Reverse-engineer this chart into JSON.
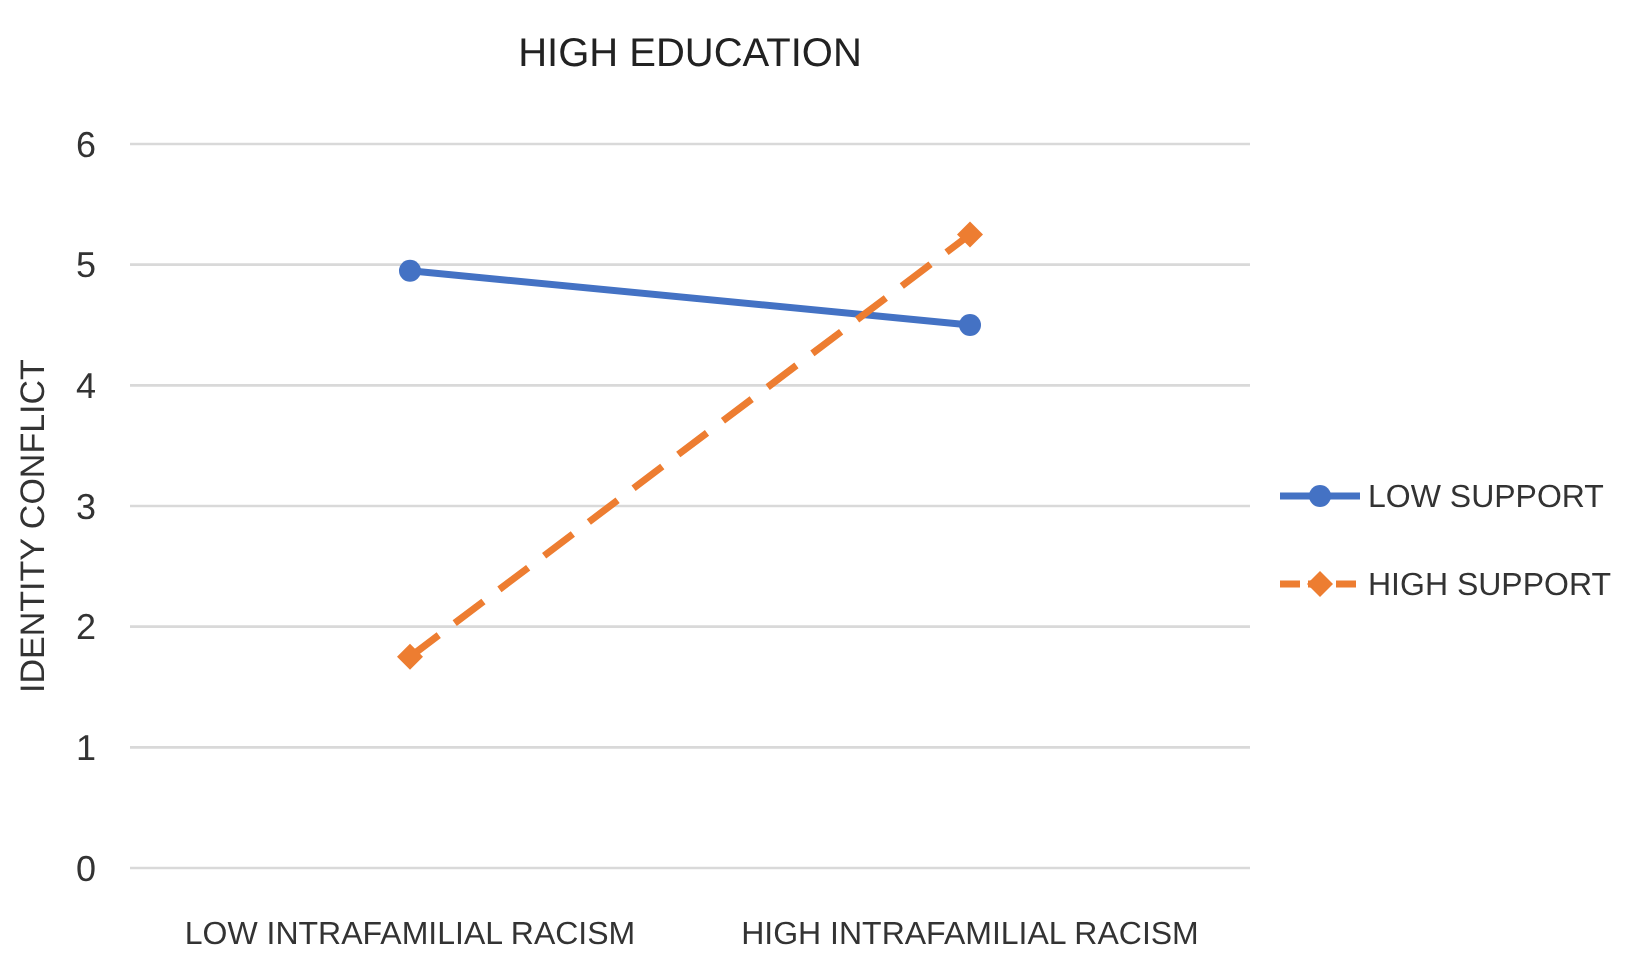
{
  "chart_data": {
    "type": "line",
    "title": "HIGH EDUCATION",
    "ylabel": "IDENTITY CONFLICT",
    "categories": [
      "LOW INTRAFAMILIAL RACISM",
      "HIGH INTRAFAMILIAL RACISM"
    ],
    "series": [
      {
        "name": "LOW SUPPORT",
        "color": "#4472c4",
        "values": [
          4.95,
          4.5
        ],
        "marker": "circle",
        "line_style": "solid"
      },
      {
        "name": "HIGH SUPPORT",
        "color": "#ed7d31",
        "values": [
          1.75,
          5.25
        ],
        "marker": "diamond",
        "line_style": "dashed"
      }
    ],
    "ylim": [
      0,
      6
    ],
    "yticks": [
      0,
      1,
      2,
      3,
      4,
      5,
      6
    ],
    "grid": "y",
    "legend": "right"
  }
}
